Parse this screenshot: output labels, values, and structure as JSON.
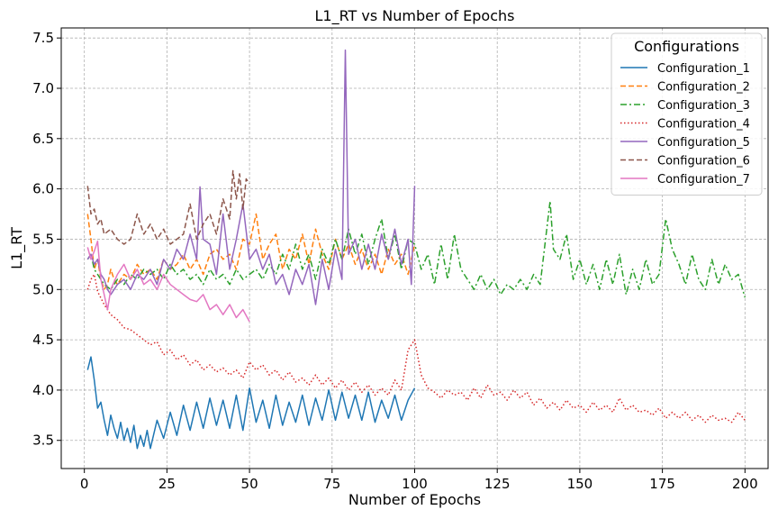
{
  "chart_data": {
    "type": "line",
    "title": "L1_RT vs Number of Epochs",
    "xlabel": "Number of Epochs",
    "ylabel": "L1_RT",
    "xlim": [
      -7,
      207
    ],
    "ylim": [
      3.22,
      7.6
    ],
    "xticks": [
      0,
      25,
      50,
      75,
      100,
      125,
      150,
      175,
      200
    ],
    "yticks": [
      3.5,
      4.0,
      4.5,
      5.0,
      5.5,
      6.0,
      6.5,
      7.0,
      7.5
    ],
    "grid": true,
    "legend": {
      "title": "Configurations",
      "position": "top-right"
    },
    "series": [
      {
        "name": "Configuration_1",
        "color": "#1f77b4",
        "style": "solid",
        "x": [
          1,
          2,
          3,
          4,
          5,
          6,
          7,
          8,
          9,
          10,
          11,
          12,
          13,
          14,
          15,
          16,
          17,
          18,
          19,
          20,
          22,
          24,
          26,
          28,
          30,
          32,
          34,
          36,
          38,
          40,
          42,
          44,
          46,
          48,
          50,
          52,
          54,
          56,
          58,
          60,
          62,
          64,
          66,
          68,
          70,
          72,
          74,
          76,
          78,
          80,
          82,
          84,
          86,
          88,
          90,
          92,
          94,
          96,
          98,
          100
        ],
        "y": [
          4.2,
          4.33,
          4.1,
          3.82,
          3.88,
          3.7,
          3.55,
          3.75,
          3.62,
          3.52,
          3.68,
          3.5,
          3.62,
          3.48,
          3.65,
          3.42,
          3.55,
          3.44,
          3.6,
          3.42,
          3.7,
          3.52,
          3.78,
          3.55,
          3.85,
          3.6,
          3.88,
          3.62,
          3.92,
          3.65,
          3.9,
          3.62,
          3.95,
          3.6,
          4.02,
          3.68,
          3.9,
          3.62,
          3.95,
          3.65,
          3.88,
          3.68,
          3.95,
          3.65,
          3.92,
          3.7,
          4.0,
          3.7,
          3.98,
          3.72,
          3.95,
          3.7,
          3.98,
          3.68,
          3.9,
          3.72,
          3.95,
          3.7,
          3.9,
          4.02
        ]
      },
      {
        "name": "Configuration_2",
        "color": "#ff7f0e",
        "style": "dashed",
        "x": [
          1,
          2,
          3,
          4,
          5,
          6,
          7,
          8,
          9,
          10,
          12,
          14,
          16,
          18,
          20,
          22,
          24,
          26,
          28,
          30,
          32,
          34,
          36,
          38,
          40,
          42,
          44,
          46,
          48,
          50,
          52,
          54,
          56,
          58,
          60,
          62,
          64,
          66,
          68,
          70,
          72,
          74,
          76,
          78,
          80,
          82,
          84,
          86,
          88,
          90,
          92,
          94,
          96,
          98,
          100
        ],
        "y": [
          5.75,
          5.5,
          5.2,
          5.3,
          5.1,
          5.0,
          5.05,
          5.2,
          5.1,
          5.05,
          5.15,
          5.1,
          5.25,
          5.15,
          5.2,
          5.1,
          5.3,
          5.2,
          5.25,
          5.35,
          5.2,
          5.3,
          5.15,
          5.35,
          5.4,
          5.3,
          5.35,
          5.2,
          5.5,
          5.45,
          5.75,
          5.3,
          5.45,
          5.55,
          5.2,
          5.4,
          5.3,
          5.55,
          5.25,
          5.6,
          5.35,
          5.2,
          5.5,
          5.3,
          5.45,
          5.25,
          5.4,
          5.2,
          5.35,
          5.15,
          5.4,
          5.25,
          5.35,
          5.15,
          5.45
        ]
      },
      {
        "name": "Configuration_3",
        "color": "#2ca02c",
        "style": "dashdot",
        "x": [
          1,
          2,
          3,
          4,
          6,
          8,
          10,
          12,
          14,
          16,
          18,
          20,
          22,
          24,
          26,
          28,
          30,
          32,
          34,
          36,
          38,
          40,
          42,
          44,
          46,
          48,
          50,
          52,
          54,
          56,
          58,
          60,
          62,
          64,
          66,
          68,
          70,
          72,
          74,
          76,
          78,
          80,
          82,
          84,
          86,
          88,
          90,
          92,
          94,
          96,
          98,
          100,
          102,
          104,
          106,
          108,
          110,
          112,
          114,
          116,
          118,
          120,
          122,
          124,
          126,
          128,
          130,
          132,
          134,
          136,
          138,
          140,
          141,
          142,
          144,
          146,
          148,
          150,
          152,
          154,
          156,
          158,
          160,
          162,
          164,
          166,
          168,
          170,
          172,
          174,
          176,
          178,
          180,
          182,
          184,
          186,
          188,
          190,
          192,
          194,
          196,
          198,
          200
        ],
        "y": [
          5.3,
          5.35,
          5.2,
          5.15,
          5.05,
          5.0,
          5.1,
          5.05,
          5.15,
          5.1,
          5.2,
          5.15,
          5.2,
          5.1,
          5.25,
          5.15,
          5.2,
          5.1,
          5.15,
          5.05,
          5.2,
          5.1,
          5.15,
          5.05,
          5.2,
          5.1,
          5.15,
          5.2,
          5.1,
          5.25,
          5.15,
          5.35,
          5.2,
          5.45,
          5.2,
          5.35,
          5.1,
          5.4,
          5.25,
          5.5,
          5.3,
          5.6,
          5.35,
          5.55,
          5.25,
          5.5,
          5.7,
          5.3,
          5.55,
          5.2,
          5.5,
          5.45,
          5.2,
          5.35,
          5.05,
          5.45,
          5.1,
          5.55,
          5.2,
          5.1,
          5.0,
          5.15,
          5.0,
          5.1,
          4.95,
          5.05,
          5.0,
          5.1,
          5.0,
          5.15,
          5.05,
          5.6,
          5.88,
          5.4,
          5.3,
          5.55,
          5.1,
          5.3,
          5.05,
          5.25,
          5.0,
          5.3,
          5.05,
          5.35,
          4.95,
          5.2,
          5.0,
          5.3,
          5.05,
          5.15,
          5.7,
          5.4,
          5.25,
          5.05,
          5.35,
          5.1,
          5.0,
          5.3,
          5.05,
          5.25,
          5.1,
          5.15,
          4.92
        ]
      },
      {
        "name": "Configuration_4",
        "color": "#d62728",
        "style": "dotted",
        "x": [
          1,
          2,
          3,
          4,
          6,
          8,
          10,
          12,
          14,
          16,
          18,
          20,
          22,
          24,
          26,
          28,
          30,
          32,
          34,
          36,
          38,
          40,
          42,
          44,
          46,
          48,
          50,
          52,
          54,
          56,
          58,
          60,
          62,
          64,
          66,
          68,
          70,
          72,
          74,
          76,
          78,
          80,
          82,
          84,
          86,
          88,
          90,
          92,
          94,
          96,
          98,
          100,
          102,
          104,
          106,
          108,
          110,
          112,
          114,
          116,
          118,
          120,
          122,
          124,
          126,
          128,
          130,
          132,
          134,
          136,
          138,
          140,
          142,
          144,
          146,
          148,
          150,
          152,
          154,
          156,
          158,
          160,
          162,
          164,
          166,
          168,
          170,
          172,
          174,
          176,
          178,
          180,
          182,
          184,
          186,
          188,
          190,
          192,
          194,
          196,
          198,
          200
        ],
        "y": [
          5.0,
          5.1,
          5.15,
          4.98,
          4.85,
          4.75,
          4.7,
          4.62,
          4.6,
          4.55,
          4.5,
          4.45,
          4.48,
          4.35,
          4.4,
          4.3,
          4.35,
          4.25,
          4.3,
          4.2,
          4.25,
          4.18,
          4.22,
          4.15,
          4.2,
          4.12,
          4.28,
          4.2,
          4.25,
          4.15,
          4.2,
          4.1,
          4.18,
          4.08,
          4.12,
          4.05,
          4.15,
          4.05,
          4.12,
          4.02,
          4.1,
          4.0,
          4.08,
          3.98,
          4.05,
          3.95,
          4.02,
          3.95,
          4.1,
          4.0,
          4.4,
          4.5,
          4.15,
          4.02,
          3.98,
          3.92,
          4.0,
          3.95,
          3.98,
          3.9,
          4.02,
          3.92,
          4.05,
          3.95,
          3.98,
          3.9,
          4.0,
          3.92,
          3.98,
          3.85,
          3.92,
          3.82,
          3.88,
          3.8,
          3.9,
          3.82,
          3.85,
          3.78,
          3.88,
          3.8,
          3.85,
          3.78,
          3.92,
          3.8,
          3.85,
          3.78,
          3.8,
          3.75,
          3.82,
          3.72,
          3.78,
          3.72,
          3.78,
          3.7,
          3.75,
          3.68,
          3.75,
          3.7,
          3.72,
          3.68,
          3.78,
          3.7
        ]
      },
      {
        "name": "Configuration_5",
        "color": "#9467bd",
        "style": "solid",
        "x": [
          1,
          2,
          3,
          4,
          5,
          6,
          7,
          8,
          10,
          12,
          14,
          16,
          18,
          20,
          22,
          24,
          26,
          28,
          30,
          32,
          34,
          35,
          36,
          38,
          40,
          42,
          44,
          46,
          48,
          50,
          52,
          54,
          56,
          58,
          60,
          62,
          64,
          66,
          68,
          70,
          72,
          74,
          76,
          78,
          79,
          80,
          82,
          84,
          86,
          88,
          90,
          92,
          94,
          96,
          98,
          99,
          100
        ],
        "y": [
          5.3,
          5.35,
          5.25,
          5.3,
          5.15,
          5.1,
          5.0,
          4.95,
          5.05,
          5.1,
          5.0,
          5.15,
          5.1,
          5.2,
          5.05,
          5.3,
          5.2,
          5.4,
          5.3,
          5.55,
          5.3,
          6.02,
          5.5,
          5.45,
          5.15,
          5.75,
          5.2,
          5.5,
          5.85,
          5.3,
          5.4,
          5.2,
          5.35,
          5.05,
          5.15,
          4.95,
          5.2,
          5.05,
          5.25,
          4.85,
          5.3,
          5.0,
          5.4,
          5.1,
          7.38,
          5.35,
          5.5,
          5.2,
          5.45,
          5.2,
          5.55,
          5.3,
          5.6,
          5.25,
          5.5,
          5.05,
          6.03
        ]
      },
      {
        "name": "Configuration_6",
        "color": "#8c564b",
        "style": "dashed",
        "x": [
          1,
          2,
          3,
          4,
          5,
          6,
          8,
          10,
          12,
          14,
          16,
          18,
          20,
          22,
          24,
          26,
          28,
          30,
          32,
          34,
          36,
          38,
          40,
          42,
          44,
          45,
          46,
          47,
          48,
          49,
          50
        ],
        "y": [
          6.03,
          5.75,
          5.8,
          5.65,
          5.7,
          5.55,
          5.6,
          5.5,
          5.45,
          5.5,
          5.75,
          5.55,
          5.65,
          5.5,
          5.6,
          5.45,
          5.5,
          5.55,
          5.85,
          5.5,
          5.65,
          5.75,
          5.55,
          5.9,
          5.7,
          6.18,
          5.9,
          6.15,
          5.8,
          6.1,
          6.05
        ]
      },
      {
        "name": "Configuration_7",
        "color": "#e377c2",
        "style": "solid",
        "x": [
          1,
          2,
          3,
          4,
          5,
          6,
          7,
          8,
          10,
          12,
          14,
          16,
          18,
          20,
          22,
          24,
          26,
          28,
          30,
          32,
          34,
          36,
          38,
          40,
          42,
          44,
          46,
          48,
          50
        ],
        "y": [
          5.42,
          5.3,
          5.38,
          5.48,
          5.1,
          4.95,
          4.8,
          5.0,
          5.15,
          5.25,
          5.1,
          5.2,
          5.05,
          5.1,
          5.0,
          5.15,
          5.05,
          5.0,
          4.95,
          4.9,
          4.88,
          4.95,
          4.8,
          4.85,
          4.75,
          4.85,
          4.72,
          4.8,
          4.68
        ]
      }
    ]
  }
}
